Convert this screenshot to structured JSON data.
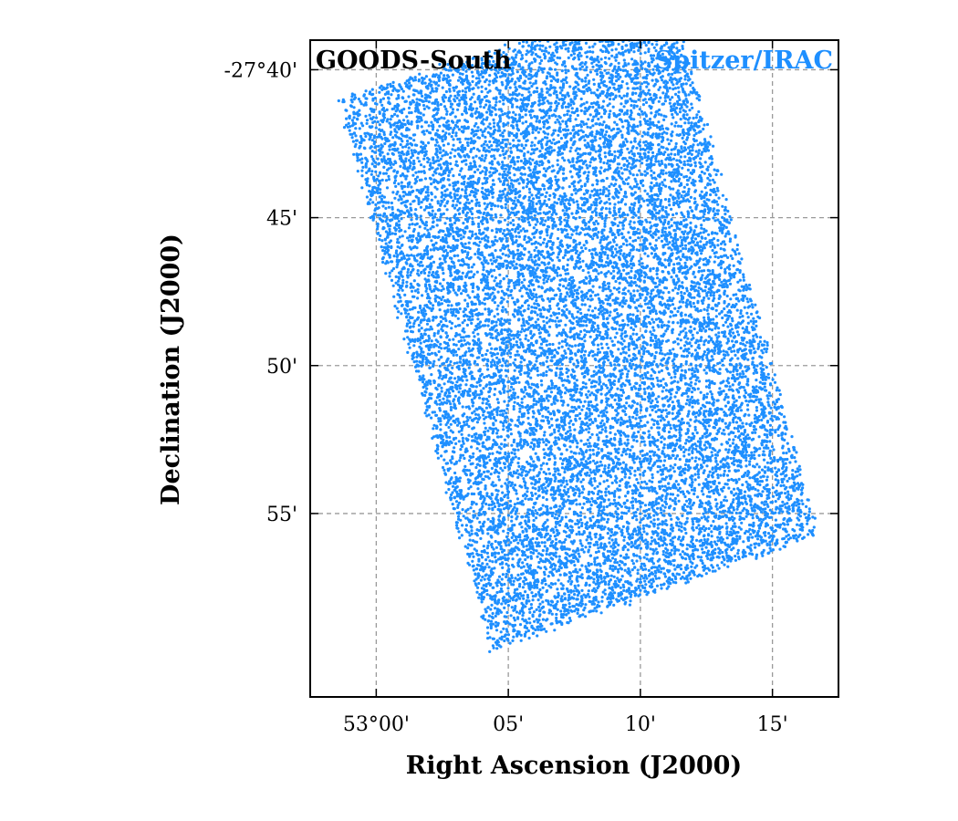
{
  "chart_data": {
    "type": "scatter",
    "title_left": "GOODS-South",
    "title_right": "Spitzer/IRAC",
    "xlabel": "Right Ascension (J2000)",
    "ylabel": "Declination (J2000)",
    "x_unit": "arcmin offset from RA 53°00'",
    "y_unit": "arcmin offset from Dec -27°00'",
    "xlim": [
      -2.5,
      17.5
    ],
    "ylim": [
      -39.0,
      -61.2
    ],
    "x_ticks": [
      0,
      5,
      10,
      15
    ],
    "x_tick_labels": [
      "53°00'",
      "05'",
      "10'",
      "15'"
    ],
    "y_ticks": [
      -40,
      -45,
      -50,
      -55
    ],
    "y_tick_labels": [
      "-27°40'",
      "45'",
      "50'",
      "55'"
    ],
    "grid": true,
    "grid_style": "dashed",
    "series": [
      {
        "name": "Spitzer/IRAC",
        "color": "#1e8fff",
        "marker_size": 1.6,
        "footprint": {
          "corners": [
            [
              -1.4,
              -41.0
            ],
            [
              11.1,
              -37.5
            ],
            [
              16.7,
              -55.7
            ],
            [
              4.4,
              -59.6
            ]
          ],
          "point_count": 16000
        }
      }
    ]
  },
  "colors": {
    "axis": "#000000",
    "grid": "#9a9a9a",
    "points": "#1e8fff",
    "title_right": "#1e8fff"
  }
}
